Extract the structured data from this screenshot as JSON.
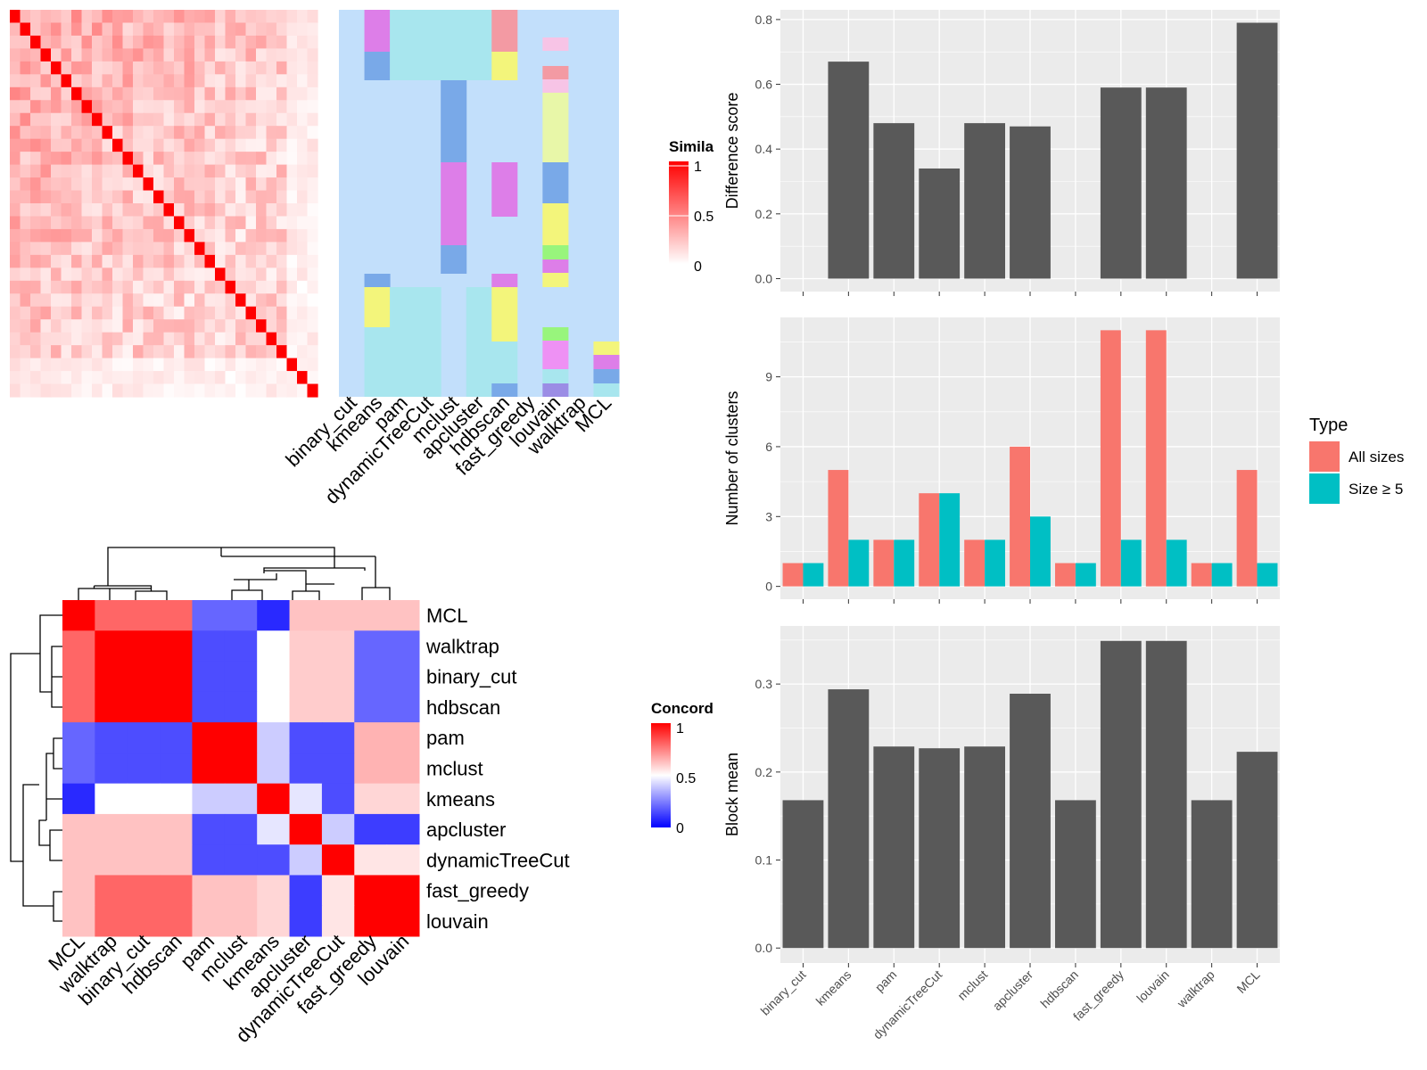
{
  "colors": {
    "panel_bg": "#ebebeb",
    "grid": "#ffffff",
    "bar_dark": "#595959",
    "all_sizes": "#f8766d",
    "size_ge5": "#00bfc4",
    "sim_high": "#ff0000",
    "sim_low": "#ffffff",
    "conc_high": "#ff0000",
    "conc_mid": "#ffffff",
    "conc_low": "#0000ff"
  },
  "similarity_legend": {
    "title": "Simila",
    "ticks": [
      "1",
      "0.5",
      "0"
    ]
  },
  "concordance_legend": {
    "title": "Concord",
    "ticks": [
      "1",
      "0.5",
      "0"
    ]
  },
  "methods_axis": [
    "binary_cut",
    "kmeans",
    "pam",
    "dynamicTreeCut",
    "mclust",
    "apcluster",
    "hdbscan",
    "fast_greedy",
    "louvain",
    "walktrap",
    "MCL"
  ],
  "chart_data": [
    {
      "type": "heatmap",
      "id": "similarity_matrix",
      "rows": 30,
      "cols": 30,
      "diagonal": 1,
      "legend": "Simila",
      "range": [
        0,
        1
      ]
    },
    {
      "type": "heatmap",
      "id": "cluster_assignments",
      "columns": [
        "binary_cut",
        "kmeans",
        "pam",
        "dynamicTreeCut",
        "mclust",
        "apcluster",
        "hdbscan",
        "fast_greedy",
        "louvain",
        "walktrap",
        "MCL"
      ]
    },
    {
      "type": "heatmap",
      "id": "concordance",
      "labels": [
        "MCL",
        "walktrap",
        "binary_cut",
        "hdbscan",
        "pam",
        "mclust",
        "kmeans",
        "apcluster",
        "dynamicTreeCut",
        "fast_greedy",
        "louvain"
      ],
      "legend": "Concord",
      "range": [
        0,
        1
      ],
      "values": [
        [
          1.0,
          0.8,
          0.8,
          0.8,
          0.2,
          0.2,
          0.08,
          0.62,
          0.62,
          0.62,
          0.62
        ],
        [
          0.8,
          1.0,
          1.0,
          1.0,
          0.15,
          0.15,
          0.5,
          0.6,
          0.6,
          0.2,
          0.2
        ],
        [
          0.8,
          1.0,
          1.0,
          1.0,
          0.15,
          0.15,
          0.5,
          0.6,
          0.6,
          0.2,
          0.2
        ],
        [
          0.8,
          1.0,
          1.0,
          1.0,
          0.15,
          0.15,
          0.5,
          0.6,
          0.6,
          0.2,
          0.2
        ],
        [
          0.2,
          0.15,
          0.15,
          0.15,
          1.0,
          1.0,
          0.4,
          0.15,
          0.15,
          0.65,
          0.65
        ],
        [
          0.2,
          0.15,
          0.15,
          0.15,
          1.0,
          1.0,
          0.4,
          0.15,
          0.15,
          0.65,
          0.65
        ],
        [
          0.08,
          0.5,
          0.5,
          0.5,
          0.4,
          0.4,
          1.0,
          0.45,
          0.15,
          0.58,
          0.58
        ],
        [
          0.62,
          0.62,
          0.62,
          0.62,
          0.15,
          0.15,
          0.45,
          1.0,
          0.4,
          0.12,
          0.12
        ],
        [
          0.62,
          0.62,
          0.62,
          0.62,
          0.15,
          0.15,
          0.15,
          0.4,
          1.0,
          0.55,
          0.55
        ],
        [
          0.62,
          0.8,
          0.8,
          0.8,
          0.62,
          0.62,
          0.58,
          0.12,
          0.55,
          1.0,
          1.0
        ],
        [
          0.62,
          0.8,
          0.8,
          0.8,
          0.62,
          0.62,
          0.58,
          0.12,
          0.55,
          1.0,
          1.0
        ]
      ]
    },
    {
      "type": "bar",
      "id": "difference_score",
      "categories": [
        "binary_cut",
        "kmeans",
        "pam",
        "dynamicTreeCut",
        "mclust",
        "apcluster",
        "hdbscan",
        "fast_greedy",
        "louvain",
        "walktrap",
        "MCL"
      ],
      "values": [
        0,
        0.67,
        0.48,
        0.34,
        0.48,
        0.47,
        0,
        0.59,
        0.59,
        0,
        0.79
      ],
      "ylabel": "Difference score",
      "ylim": [
        -0.04,
        0.83
      ],
      "yticks": [
        "0.0",
        "0.2",
        "0.4",
        "0.6",
        "0.8"
      ],
      "grid": true
    },
    {
      "type": "bar",
      "id": "number_of_clusters",
      "categories": [
        "binary_cut",
        "kmeans",
        "pam",
        "dynamicTreeCut",
        "mclust",
        "apcluster",
        "hdbscan",
        "fast_greedy",
        "louvain",
        "walktrap",
        "MCL"
      ],
      "series": [
        {
          "name": "All sizes",
          "values": [
            1,
            5,
            2,
            4,
            2,
            6,
            1,
            11,
            11,
            1,
            5
          ]
        },
        {
          "name": "Size ≥ 5",
          "values": [
            1,
            2,
            2,
            4,
            2,
            3,
            1,
            2,
            2,
            1,
            1
          ]
        }
      ],
      "ylabel": "Number of clusters",
      "ylim": [
        -0.55,
        11.55
      ],
      "yticks": [
        "0",
        "3",
        "6",
        "9"
      ],
      "legend_title": "Type",
      "legend_position": "right",
      "grid": true
    },
    {
      "type": "bar",
      "id": "block_mean",
      "categories": [
        "binary_cut",
        "kmeans",
        "pam",
        "dynamicTreeCut",
        "mclust",
        "apcluster",
        "hdbscan",
        "fast_greedy",
        "louvain",
        "walktrap",
        "MCL"
      ],
      "values": [
        0.168,
        0.294,
        0.229,
        0.227,
        0.229,
        0.289,
        0.168,
        0.349,
        0.349,
        0.168,
        0.223
      ],
      "ylabel": "Block mean",
      "ylim": [
        -0.017,
        0.366
      ],
      "yticks": [
        "0.0",
        "0.1",
        "0.2",
        "0.3"
      ],
      "grid": true
    }
  ]
}
